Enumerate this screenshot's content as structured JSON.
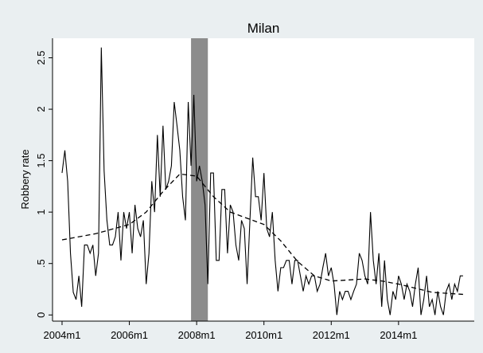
{
  "chart_data": {
    "type": "line",
    "title": "Milan",
    "y_label": "Robbery rate",
    "xlim": [
      524.6,
      675
    ],
    "ylim": [
      -0.06,
      2.69
    ],
    "xticks": [
      {
        "value": 528,
        "label": "2004m1"
      },
      {
        "value": 552,
        "label": "2006m1"
      },
      {
        "value": 576,
        "label": "2008m1"
      },
      {
        "value": 600,
        "label": "2010m1"
      },
      {
        "value": 624,
        "label": "2012m1"
      },
      {
        "value": 648,
        "label": "2014m1"
      }
    ],
    "yticks": [
      0,
      {
        "value": 0.5,
        "label": ".5"
      },
      1,
      1.5,
      2,
      2.5
    ],
    "grid": false,
    "shade": [
      574,
      580
    ],
    "shade_color": "#8c8c8c",
    "series": [
      {
        "color": "#000000",
        "dash": false,
        "x": [
          528,
          529,
          530,
          531,
          532,
          533,
          534,
          535,
          536,
          537,
          538,
          539,
          540,
          541,
          542,
          543,
          544,
          545,
          546,
          547,
          548,
          549,
          550,
          551,
          552,
          553,
          554,
          555,
          556,
          557,
          558,
          559,
          560,
          561,
          562,
          563,
          564,
          565,
          566,
          567,
          568,
          569,
          570,
          571,
          572,
          573,
          574,
          575,
          576,
          577,
          578,
          579,
          580,
          581,
          582,
          583,
          584,
          585,
          586,
          587,
          588,
          589,
          590,
          591,
          592,
          593,
          594,
          595,
          596,
          597,
          598,
          599,
          600,
          601,
          602,
          603,
          604,
          605,
          606,
          607,
          608,
          609,
          610,
          611,
          612,
          613,
          614,
          615,
          616,
          617,
          618,
          619,
          620,
          621,
          622,
          623,
          624,
          625,
          626,
          627,
          628,
          629,
          630,
          631,
          632,
          633,
          634,
          635,
          636,
          637,
          638,
          639,
          640,
          641,
          642,
          643,
          644,
          645,
          646,
          647,
          648,
          649,
          650,
          651,
          652,
          653,
          654,
          655,
          656,
          657,
          658,
          659,
          660,
          661,
          662,
          663,
          664,
          665,
          666,
          667,
          668,
          669,
          670,
          671
        ],
        "values": [
          1.38,
          1.6,
          1.3,
          0.6,
          0.22,
          0.15,
          0.38,
          0.08,
          0.68,
          0.68,
          0.6,
          0.68,
          0.38,
          0.6,
          2.6,
          1.4,
          0.92,
          0.68,
          0.68,
          0.76,
          1.0,
          0.53,
          1.0,
          0.84,
          1.0,
          0.6,
          1.07,
          0.84,
          0.76,
          0.92,
          0.3,
          0.6,
          1.3,
          1.0,
          1.75,
          1.15,
          1.84,
          1.22,
          1.3,
          1.45,
          2.07,
          1.84,
          1.6,
          1.15,
          0.92,
          2.07,
          1.45,
          2.14,
          1.3,
          1.45,
          1.3,
          1.07,
          0.3,
          1.38,
          1.38,
          0.53,
          0.53,
          1.22,
          1.22,
          0.6,
          1.07,
          1.0,
          0.68,
          0.53,
          0.92,
          0.84,
          0.3,
          0.92,
          1.53,
          1.15,
          1.15,
          0.92,
          1.38,
          0.84,
          0.76,
          1.0,
          0.53,
          0.23,
          0.46,
          0.46,
          0.53,
          0.53,
          0.3,
          0.53,
          0.53,
          0.38,
          0.23,
          0.38,
          0.3,
          0.38,
          0.38,
          0.23,
          0.3,
          0.46,
          0.6,
          0.38,
          0.46,
          0.3,
          0.0,
          0.23,
          0.15,
          0.23,
          0.23,
          0.15,
          0.23,
          0.3,
          0.6,
          0.53,
          0.38,
          0.3,
          1.0,
          0.53,
          0.3,
          0.6,
          0.08,
          0.53,
          0.15,
          0.0,
          0.23,
          0.15,
          0.38,
          0.3,
          0.15,
          0.3,
          0.23,
          0.08,
          0.3,
          0.46,
          0.0,
          0.15,
          0.38,
          0.08,
          0.15,
          0.0,
          0.23,
          0.08,
          0.0,
          0.23,
          0.3,
          0.15,
          0.3,
          0.23,
          0.38,
          0.38
        ]
      },
      {
        "color": "#000000",
        "dash": true,
        "x": [
          528,
          540,
          552,
          558,
          564,
          570,
          576,
          582,
          588,
          600,
          606,
          612,
          618,
          624,
          636,
          642,
          648,
          660,
          671
        ],
        "values": [
          0.73,
          0.79,
          0.88,
          1.0,
          1.2,
          1.37,
          1.35,
          1.15,
          1.0,
          0.88,
          0.72,
          0.52,
          0.38,
          0.33,
          0.35,
          0.33,
          0.3,
          0.22,
          0.2
        ]
      }
    ]
  }
}
